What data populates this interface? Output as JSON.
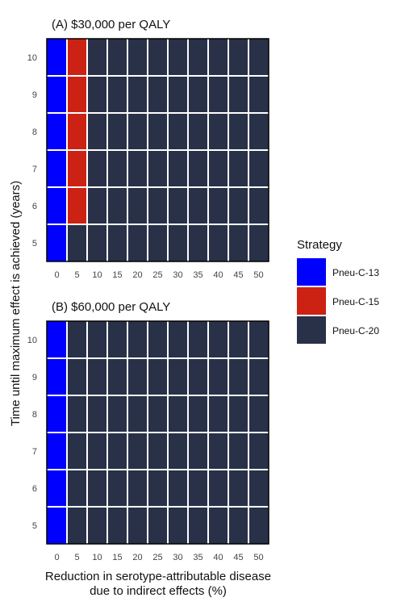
{
  "chart_data": [
    {
      "type": "heatmap",
      "title": "(A) $30,000 per QALY",
      "x": [
        0,
        5,
        10,
        15,
        20,
        25,
        30,
        35,
        40,
        45,
        50
      ],
      "y": [
        5,
        6,
        7,
        8,
        9,
        10
      ],
      "cells": [
        [
          "Pneu-C-13",
          "Pneu-C-20",
          "Pneu-C-20",
          "Pneu-C-20",
          "Pneu-C-20",
          "Pneu-C-20",
          "Pneu-C-20",
          "Pneu-C-20",
          "Pneu-C-20",
          "Pneu-C-20",
          "Pneu-C-20"
        ],
        [
          "Pneu-C-13",
          "Pneu-C-15",
          "Pneu-C-20",
          "Pneu-C-20",
          "Pneu-C-20",
          "Pneu-C-20",
          "Pneu-C-20",
          "Pneu-C-20",
          "Pneu-C-20",
          "Pneu-C-20",
          "Pneu-C-20"
        ],
        [
          "Pneu-C-13",
          "Pneu-C-15",
          "Pneu-C-20",
          "Pneu-C-20",
          "Pneu-C-20",
          "Pneu-C-20",
          "Pneu-C-20",
          "Pneu-C-20",
          "Pneu-C-20",
          "Pneu-C-20",
          "Pneu-C-20"
        ],
        [
          "Pneu-C-13",
          "Pneu-C-15",
          "Pneu-C-20",
          "Pneu-C-20",
          "Pneu-C-20",
          "Pneu-C-20",
          "Pneu-C-20",
          "Pneu-C-20",
          "Pneu-C-20",
          "Pneu-C-20",
          "Pneu-C-20"
        ],
        [
          "Pneu-C-13",
          "Pneu-C-15",
          "Pneu-C-20",
          "Pneu-C-20",
          "Pneu-C-20",
          "Pneu-C-20",
          "Pneu-C-20",
          "Pneu-C-20",
          "Pneu-C-20",
          "Pneu-C-20",
          "Pneu-C-20"
        ],
        [
          "Pneu-C-13",
          "Pneu-C-15",
          "Pneu-C-20",
          "Pneu-C-20",
          "Pneu-C-20",
          "Pneu-C-20",
          "Pneu-C-20",
          "Pneu-C-20",
          "Pneu-C-20",
          "Pneu-C-20",
          "Pneu-C-20"
        ]
      ]
    },
    {
      "type": "heatmap",
      "title": "(B) $60,000 per QALY",
      "x": [
        0,
        5,
        10,
        15,
        20,
        25,
        30,
        35,
        40,
        45,
        50
      ],
      "y": [
        5,
        6,
        7,
        8,
        9,
        10
      ],
      "cells": [
        [
          "Pneu-C-13",
          "Pneu-C-20",
          "Pneu-C-20",
          "Pneu-C-20",
          "Pneu-C-20",
          "Pneu-C-20",
          "Pneu-C-20",
          "Pneu-C-20",
          "Pneu-C-20",
          "Pneu-C-20",
          "Pneu-C-20"
        ],
        [
          "Pneu-C-13",
          "Pneu-C-20",
          "Pneu-C-20",
          "Pneu-C-20",
          "Pneu-C-20",
          "Pneu-C-20",
          "Pneu-C-20",
          "Pneu-C-20",
          "Pneu-C-20",
          "Pneu-C-20",
          "Pneu-C-20"
        ],
        [
          "Pneu-C-13",
          "Pneu-C-20",
          "Pneu-C-20",
          "Pneu-C-20",
          "Pneu-C-20",
          "Pneu-C-20",
          "Pneu-C-20",
          "Pneu-C-20",
          "Pneu-C-20",
          "Pneu-C-20",
          "Pneu-C-20"
        ],
        [
          "Pneu-C-13",
          "Pneu-C-20",
          "Pneu-C-20",
          "Pneu-C-20",
          "Pneu-C-20",
          "Pneu-C-20",
          "Pneu-C-20",
          "Pneu-C-20",
          "Pneu-C-20",
          "Pneu-C-20",
          "Pneu-C-20"
        ],
        [
          "Pneu-C-13",
          "Pneu-C-20",
          "Pneu-C-20",
          "Pneu-C-20",
          "Pneu-C-20",
          "Pneu-C-20",
          "Pneu-C-20",
          "Pneu-C-20",
          "Pneu-C-20",
          "Pneu-C-20",
          "Pneu-C-20"
        ],
        [
          "Pneu-C-13",
          "Pneu-C-20",
          "Pneu-C-20",
          "Pneu-C-20",
          "Pneu-C-20",
          "Pneu-C-20",
          "Pneu-C-20",
          "Pneu-C-20",
          "Pneu-C-20",
          "Pneu-C-20",
          "Pneu-C-20"
        ]
      ]
    }
  ],
  "axes": {
    "ylabel": "Time until maximum effect is achieved (years)",
    "xlabel_line1": "Reduction in serotype-attributable disease",
    "xlabel_line2": "due to indirect effects (%)"
  },
  "legend": {
    "title": "Strategy",
    "placement": "right",
    "items": [
      {
        "label": "Pneu-C-13",
        "color": "#0000FF"
      },
      {
        "label": "Pneu-C-15",
        "color": "#CC2213"
      },
      {
        "label": "Pneu-C-20",
        "color": "#283148"
      }
    ]
  },
  "colors": {
    "grid_line": "#ffffff",
    "panel_border": "#000000"
  }
}
